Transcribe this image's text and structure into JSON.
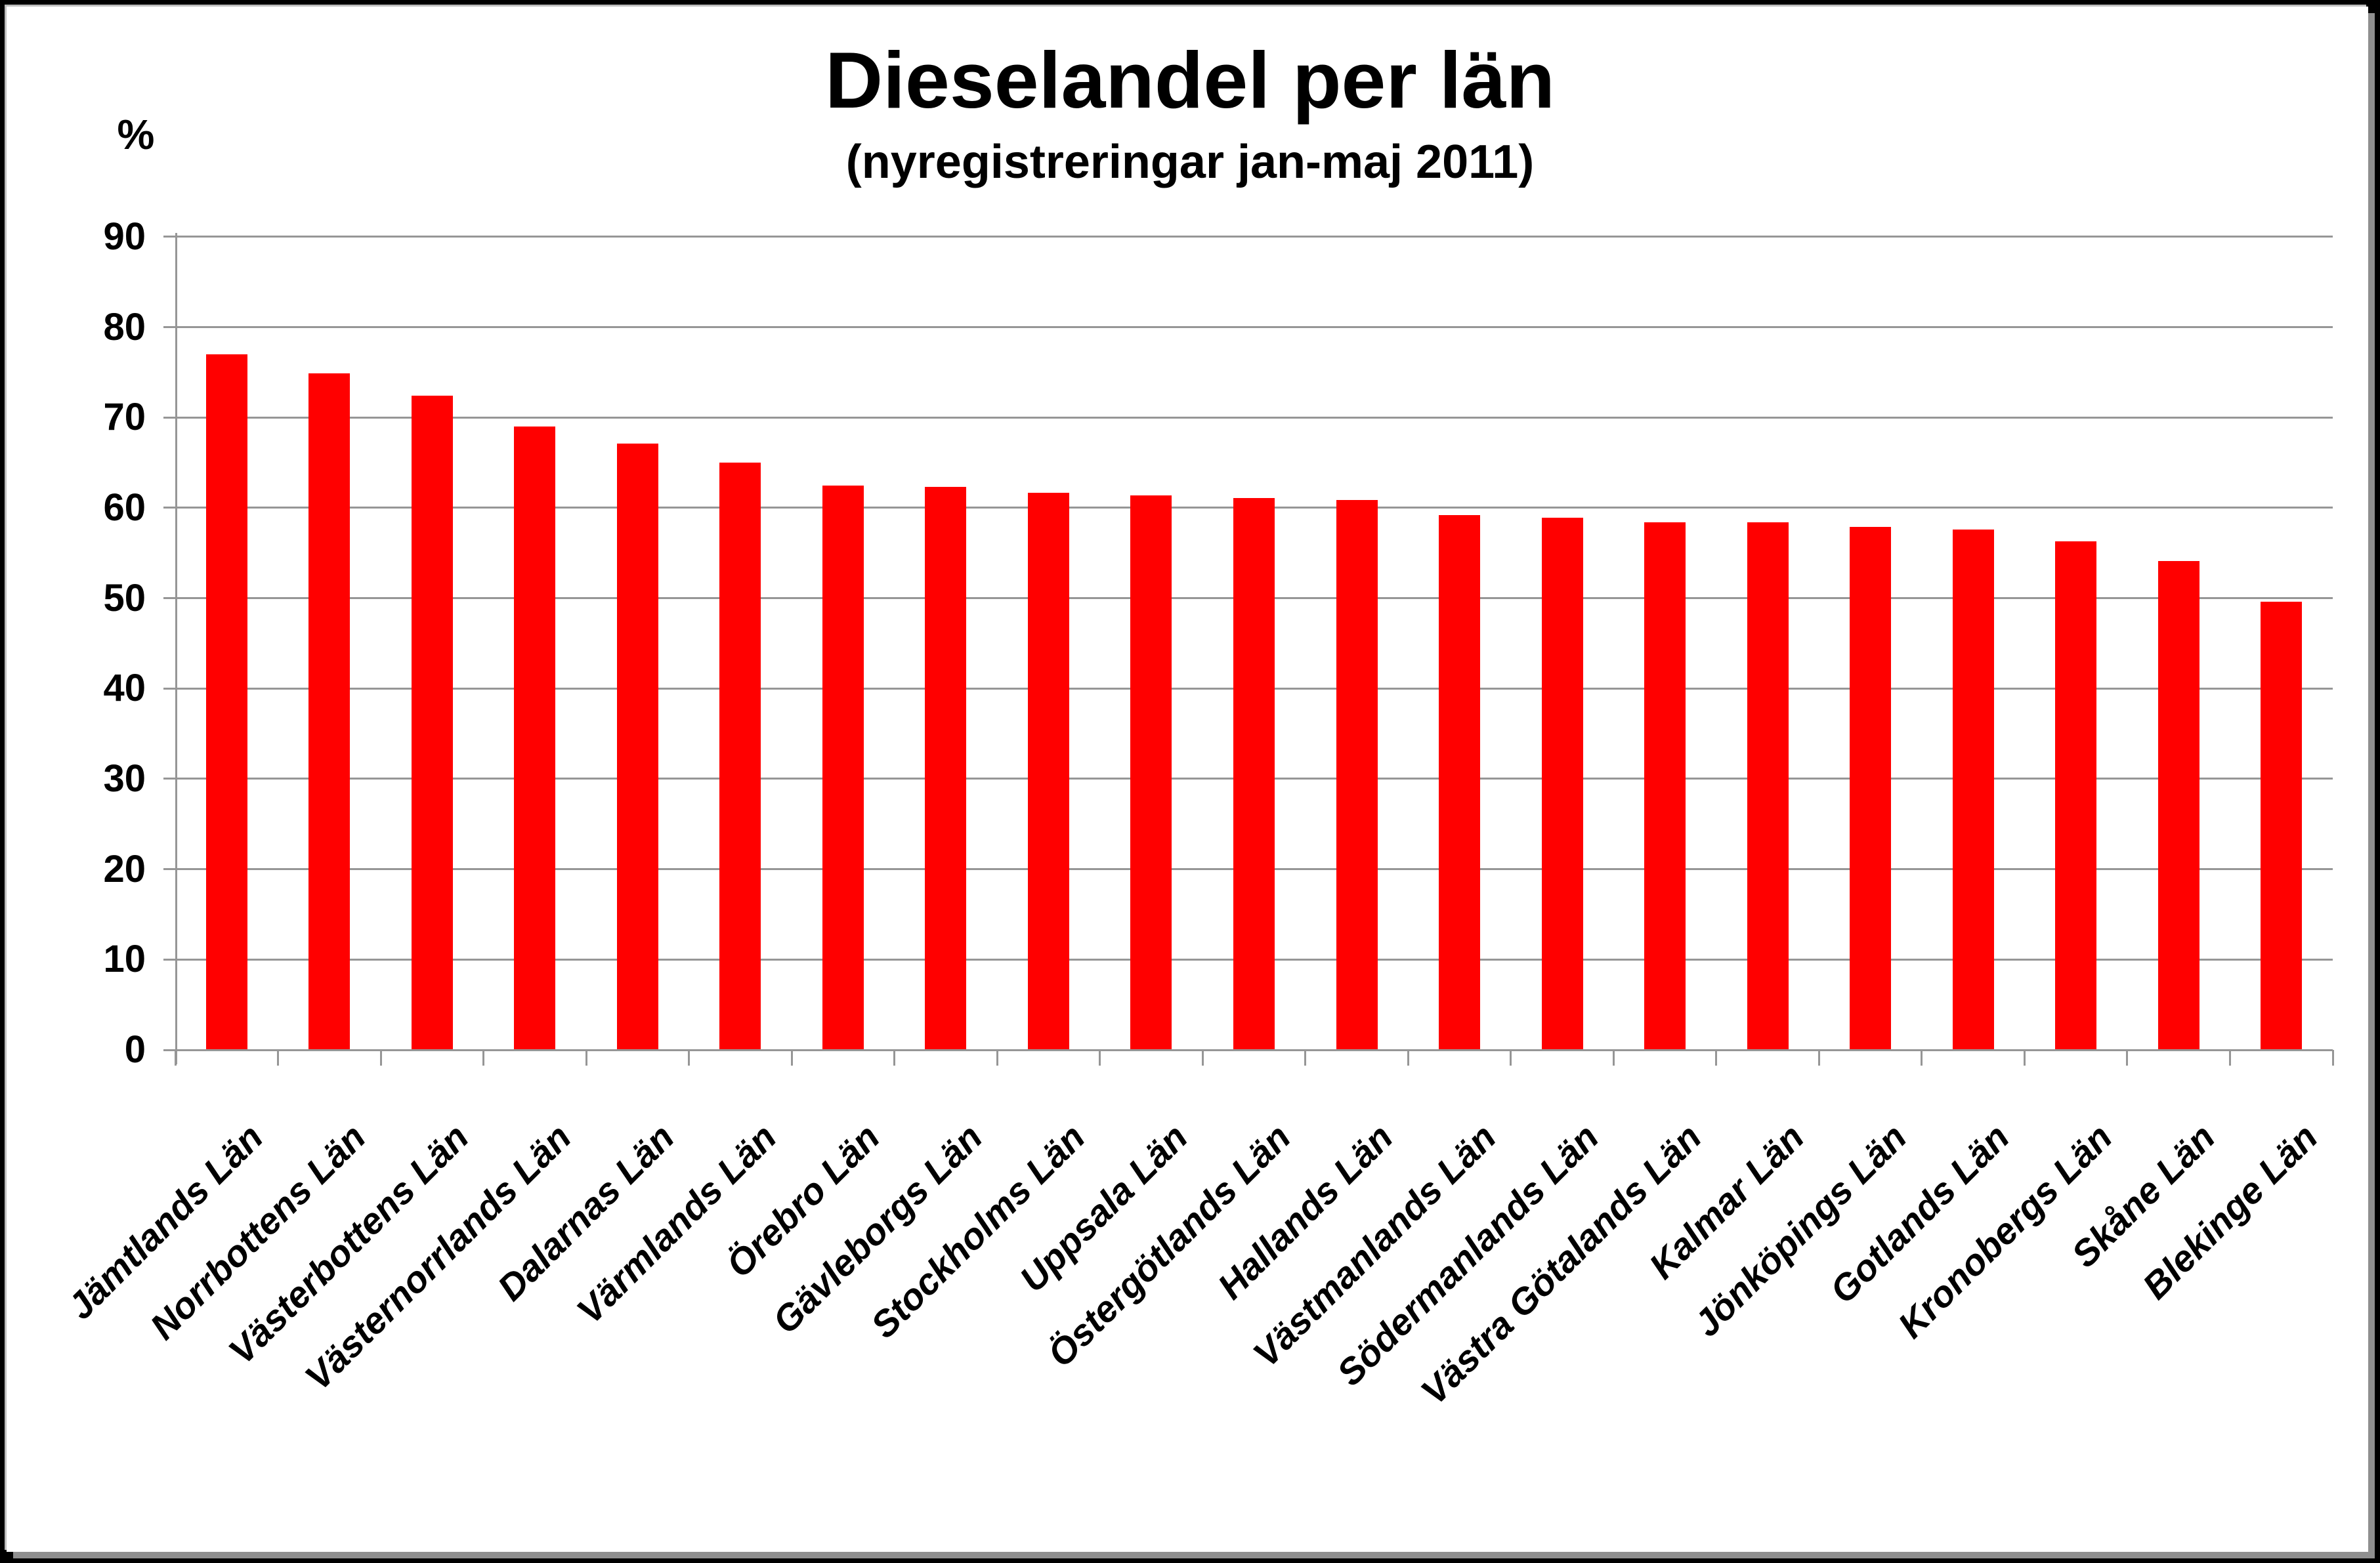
{
  "chart_data": {
    "type": "bar",
    "title": "Dieselandel per län",
    "subtitle": "(nyregistreringar jan-maj 2011)",
    "ylabel": "%",
    "xlabel": "",
    "ylim": [
      0,
      90
    ],
    "ytick_step": 10,
    "grid": true,
    "legend": false,
    "categories": [
      "Jämtlands Län",
      "Norrbottens Län",
      "Västerbottens Län",
      "Västernorrlands Län",
      "Dalarnas Län",
      "Värmlands Län",
      "Örebro Län",
      "Gävleborgs Län",
      "Stockholms Län",
      "Uppsala Län",
      "Östergötlands Län",
      "Hallands Län",
      "Västmanlands Län",
      "Södermanlands Län",
      "Västra Götalands Län",
      "Kalmar Län",
      "Jönköpings Län",
      "Gotlands Län",
      "Kronobergs Län",
      "Skåne Län",
      "Blekinge Län"
    ],
    "values": [
      77,
      74.9,
      72.4,
      69,
      67.1,
      65,
      62.5,
      62.3,
      61.7,
      61.4,
      61.1,
      60.9,
      59.2,
      58.9,
      58.4,
      58.4,
      57.9,
      57.6,
      56.3,
      54.1,
      49.6
    ]
  },
  "y_axis": {
    "unit_label": "%",
    "ticks": [
      "0",
      "10",
      "20",
      "30",
      "40",
      "50",
      "60",
      "70",
      "80",
      "90"
    ]
  },
  "colors": {
    "bar": "#ff0000",
    "grid": "#969696",
    "axis": "#969696",
    "text": "#000000",
    "background": "#ffffff",
    "frame": "#000000",
    "shadow": "#8f8f8f"
  }
}
